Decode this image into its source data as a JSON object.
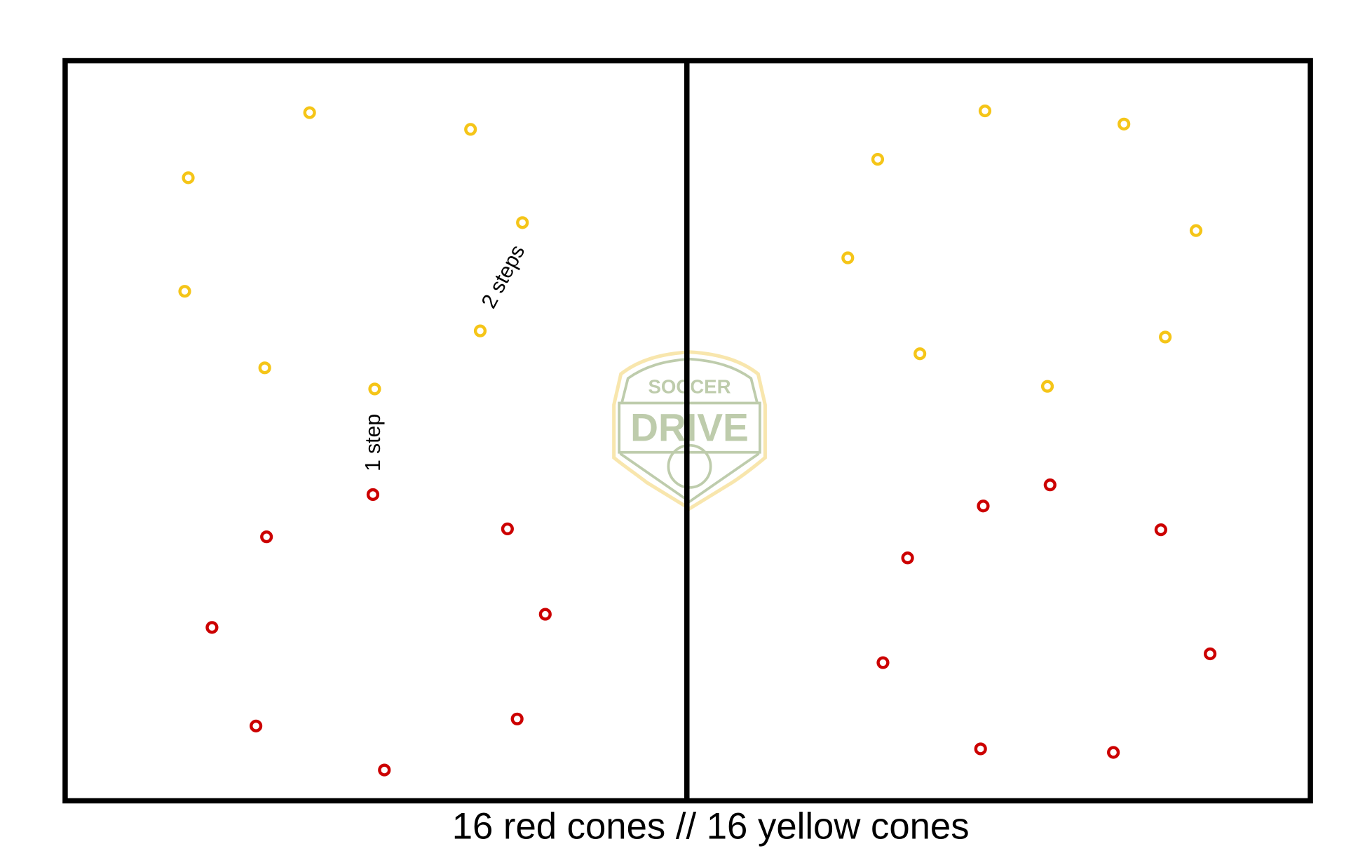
{
  "annotations": {
    "one_step": "1 step",
    "two_steps": "2 steps"
  },
  "logo": {
    "top": "SOCCER",
    "bottom": "DRIVE"
  },
  "caption": "16 red cones // 16 yellow cones"
}
